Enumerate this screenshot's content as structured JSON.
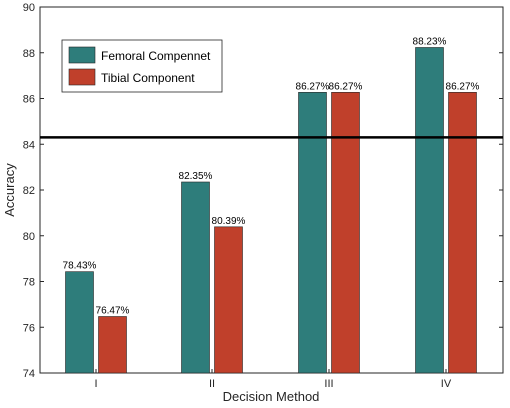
{
  "chart_data": {
    "type": "bar",
    "categories": [
      "I",
      "II",
      "III",
      "IV"
    ],
    "series": [
      {
        "name": "Femoral Compennet",
        "values": [
          78.43,
          82.35,
          86.27,
          88.23
        ],
        "labels": [
          "78.43%",
          "82.35%",
          "86.27%",
          "88.23%"
        ],
        "color": "#2e7d7b"
      },
      {
        "name": "Tibial Component",
        "values": [
          76.47,
          80.39,
          86.27,
          86.27
        ],
        "labels": [
          "76.47%",
          "80.39%",
          "86.27%",
          "86.27%"
        ],
        "color": "#c0402b"
      }
    ],
    "xlabel": "Decision Method",
    "ylabel": "Accuracy",
    "ylim": [
      74,
      90
    ],
    "yticks": [
      74,
      76,
      78,
      80,
      82,
      84,
      86,
      88,
      90
    ],
    "reference_line": 84.3,
    "legend_position": "top-left",
    "grid": false
  }
}
